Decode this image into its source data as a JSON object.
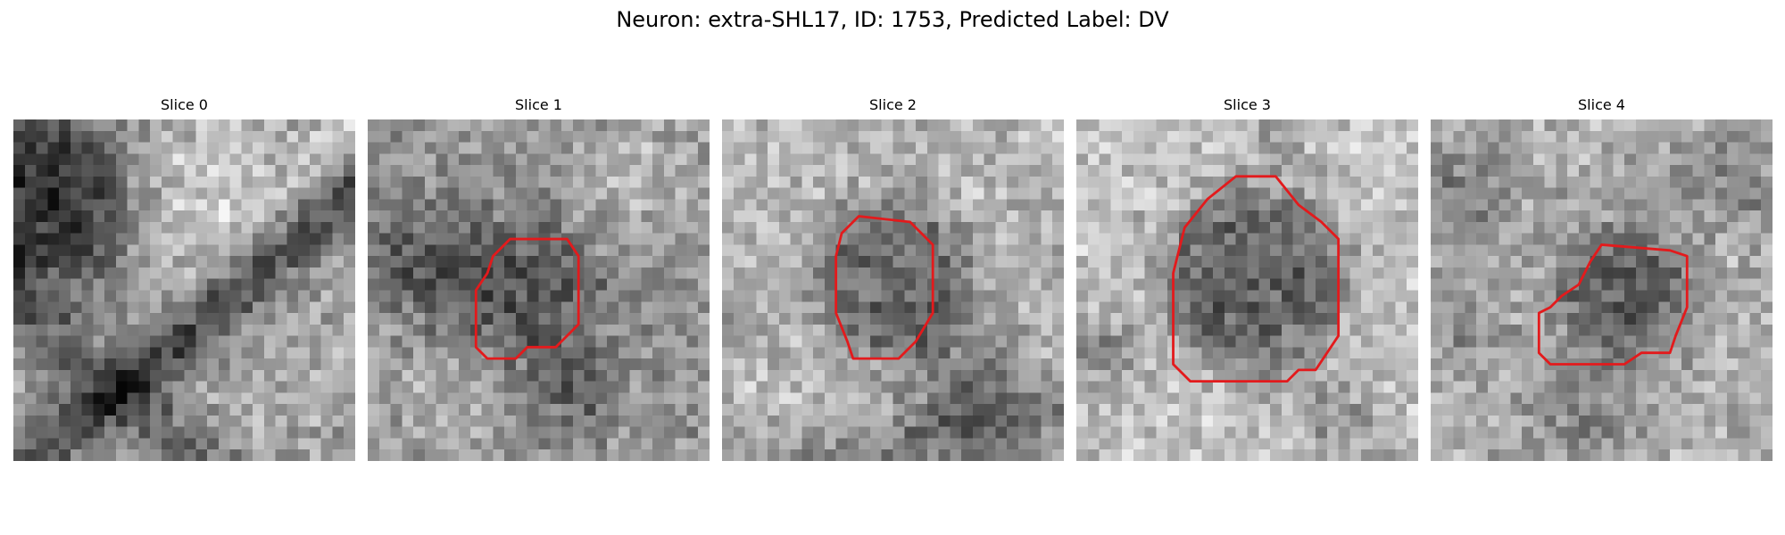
{
  "figure": {
    "title": "Neuron: extra-SHL17, ID: 1753, Predicted Label: DV"
  },
  "panels": [
    {
      "title": "Slice 0",
      "has_contour": false
    },
    {
      "title": "Slice 1",
      "has_contour": true
    },
    {
      "title": "Slice 2",
      "has_contour": true
    },
    {
      "title": "Slice 3",
      "has_contour": true
    },
    {
      "title": "Slice 4",
      "has_contour": true
    }
  ],
  "style": {
    "contour_color": "#e31a1c",
    "colormap": "grayscale"
  }
}
